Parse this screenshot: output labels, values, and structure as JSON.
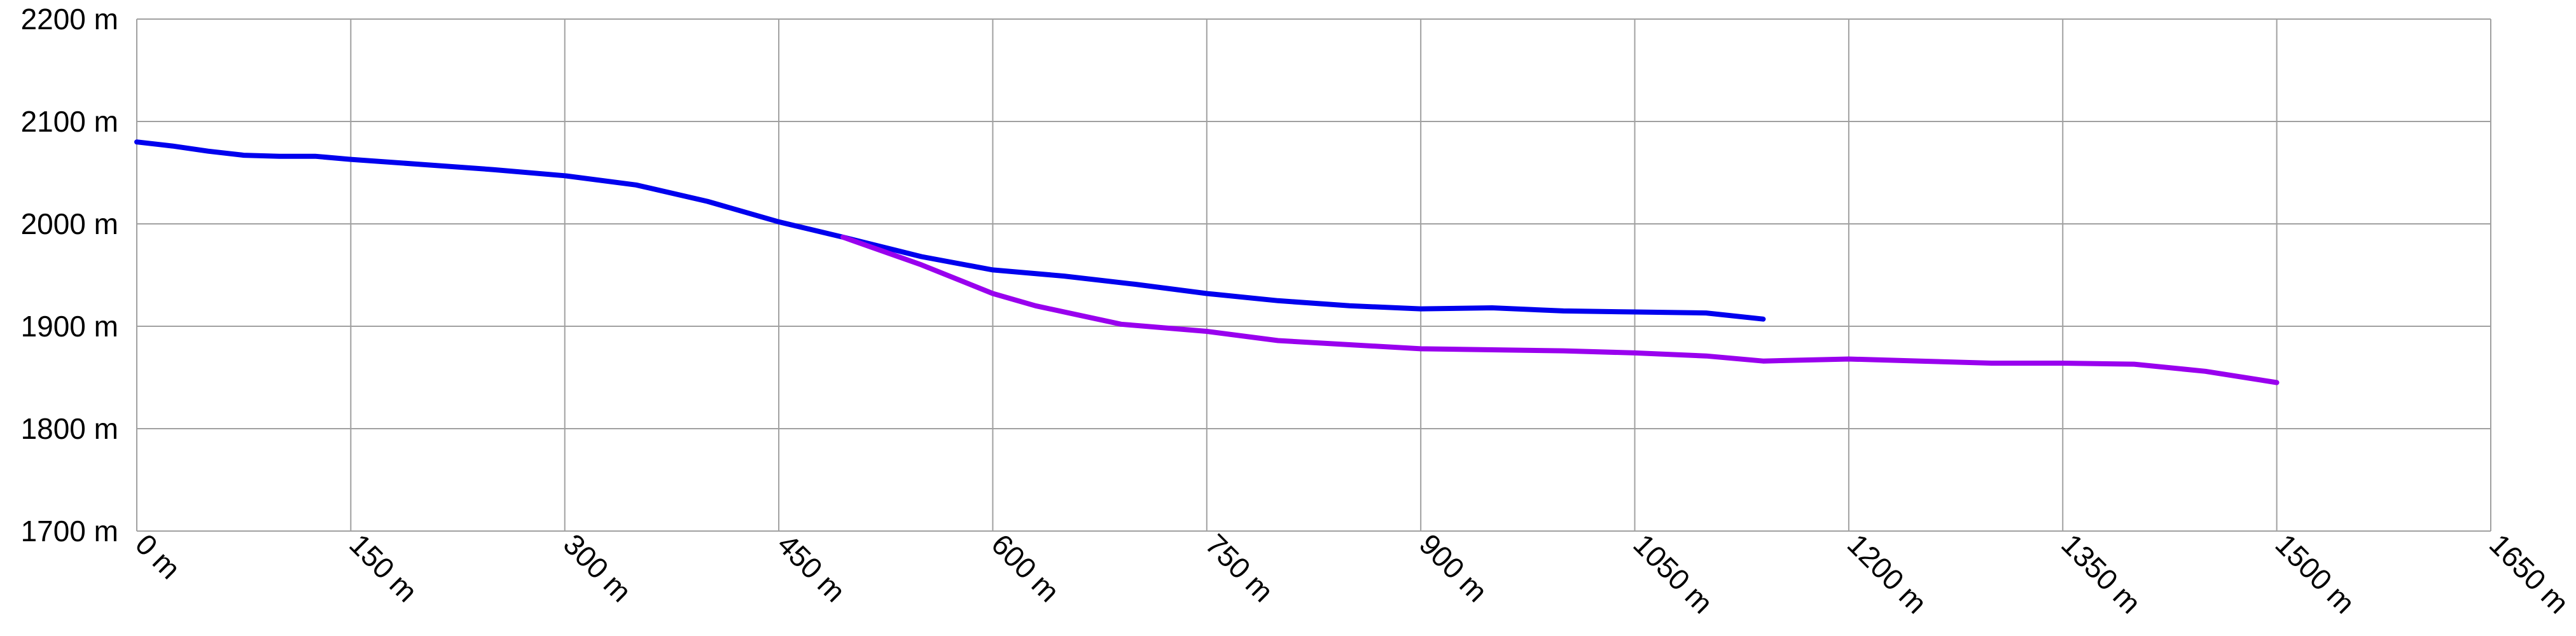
{
  "chart_data": {
    "type": "line",
    "title": "",
    "xlabel": "",
    "ylabel": "",
    "xlim": [
      0,
      1650
    ],
    "ylim": [
      1700,
      2200
    ],
    "x_ticks": [
      0,
      150,
      300,
      450,
      600,
      750,
      900,
      1050,
      1200,
      1350,
      1500,
      1650
    ],
    "y_ticks": [
      1700,
      1800,
      1900,
      2000,
      2100,
      2200
    ],
    "x_tick_labels": [
      "0 m",
      "150 m",
      "300 m",
      "450 m",
      "600 m",
      "750 m",
      "900 m",
      "1050 m",
      "1200 m",
      "1350 m",
      "1500 m",
      "1650 m"
    ],
    "y_tick_labels": [
      "1700 m",
      "1800 m",
      "1900 m",
      "2000 m",
      "2100 m",
      "2200 m"
    ],
    "grid": true,
    "legend": "none",
    "series": [
      {
        "color": "#0000ee",
        "points": [
          [
            0,
            2080
          ],
          [
            25,
            2076
          ],
          [
            50,
            2071
          ],
          [
            75,
            2067
          ],
          [
            100,
            2066
          ],
          [
            125,
            2066
          ],
          [
            150,
            2063
          ],
          [
            200,
            2058
          ],
          [
            250,
            2053
          ],
          [
            300,
            2047
          ],
          [
            350,
            2038
          ],
          [
            400,
            2022
          ],
          [
            450,
            2002
          ],
          [
            495,
            1987
          ],
          [
            550,
            1968
          ],
          [
            600,
            1955
          ],
          [
            650,
            1949
          ],
          [
            700,
            1941
          ],
          [
            750,
            1932
          ],
          [
            800,
            1925
          ],
          [
            850,
            1920
          ],
          [
            900,
            1917
          ],
          [
            950,
            1918
          ],
          [
            1000,
            1915
          ],
          [
            1050,
            1914
          ],
          [
            1100,
            1913
          ],
          [
            1140,
            1907
          ]
        ]
      },
      {
        "color": "#9900ee",
        "points": [
          [
            495,
            1987
          ],
          [
            550,
            1960
          ],
          [
            600,
            1932
          ],
          [
            630,
            1920
          ],
          [
            660,
            1911
          ],
          [
            690,
            1902
          ],
          [
            750,
            1895
          ],
          [
            800,
            1886
          ],
          [
            850,
            1882
          ],
          [
            900,
            1878
          ],
          [
            950,
            1877
          ],
          [
            1000,
            1876
          ],
          [
            1050,
            1874
          ],
          [
            1100,
            1871
          ],
          [
            1140,
            1866
          ],
          [
            1200,
            1868
          ],
          [
            1250,
            1866
          ],
          [
            1300,
            1864
          ],
          [
            1350,
            1864
          ],
          [
            1400,
            1863
          ],
          [
            1450,
            1856
          ],
          [
            1500,
            1845
          ]
        ]
      }
    ]
  }
}
